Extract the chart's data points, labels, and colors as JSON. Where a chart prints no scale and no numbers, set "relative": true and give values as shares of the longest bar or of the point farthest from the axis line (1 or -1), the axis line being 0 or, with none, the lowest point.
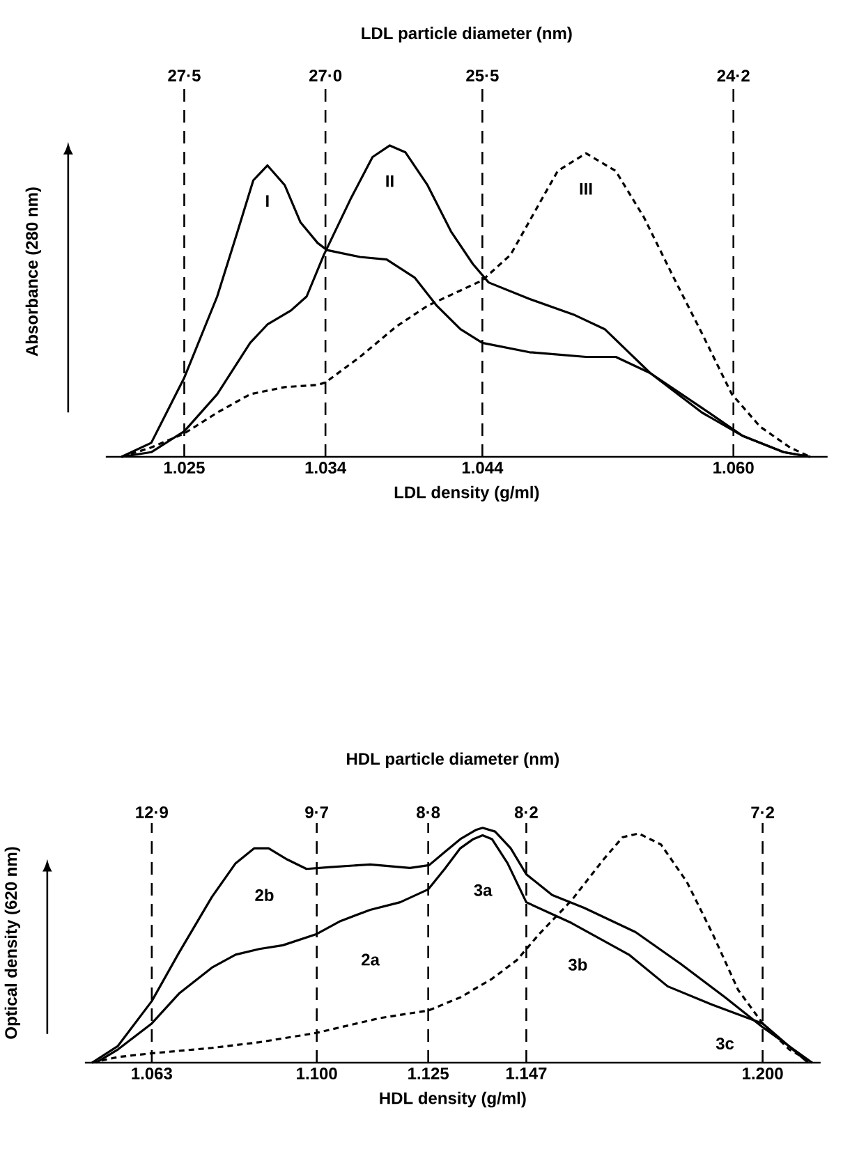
{
  "chart_data": [
    {
      "type": "line",
      "relative": true,
      "title": "LDL particle diameter (nm)",
      "xlabel": "LDL density (g/ml)",
      "ylabel": "Absorbance (280 nm)",
      "xlim": [
        1.02,
        1.066
      ],
      "xticks": [
        1.025,
        1.034,
        1.044,
        {
          "value": 1.06,
          "label": "1.060"
        }
      ],
      "ref_lines": [
        {
          "axis": "x",
          "value": 1.025,
          "line_style": "dashed"
        },
        {
          "axis": "x",
          "value": 1.034,
          "line_style": "dashed"
        },
        {
          "axis": "x",
          "value": 1.044,
          "line_style": "dashed"
        },
        {
          "axis": "x",
          "value": 1.06,
          "line_style": "dashed"
        }
      ],
      "annotations": [
        "27·5",
        "27·0",
        "25·5",
        "24·2"
      ],
      "series": [
        {
          "name": "I",
          "color": "#000000",
          "line_style": "solid",
          "x": [
            1.021,
            1.0229,
            1.025,
            1.0271,
            1.0284,
            1.0294,
            1.0303,
            1.0314,
            1.0324,
            1.0335,
            1.0341,
            1.0362,
            1.0379,
            1.0397,
            1.0411,
            1.0426,
            1.044,
            1.047,
            1.0506,
            1.0525,
            1.0547,
            1.058,
            1.0606,
            1.0632,
            1.0649
          ],
          "values": [
            0,
            0.045,
            0.254,
            0.515,
            0.724,
            0.888,
            0.936,
            0.873,
            0.754,
            0.687,
            0.664,
            0.642,
            0.634,
            0.575,
            0.485,
            0.41,
            0.366,
            0.336,
            0.321,
            0.321,
            0.269,
            0.157,
            0.067,
            0.015,
            0
          ]
        },
        {
          "name": "II",
          "color": "#000000",
          "line_style": "solid",
          "x": [
            1.021,
            1.0229,
            1.025,
            1.0271,
            1.0292,
            1.0303,
            1.0318,
            1.0328,
            1.0339,
            1.0356,
            1.037,
            1.0381,
            1.0391,
            1.0405,
            1.042,
            1.0434,
            1.0444,
            1.047,
            1.0499,
            1.0518,
            1.0547,
            1.058,
            1.0606,
            1.0632,
            1.0649
          ],
          "values": [
            0,
            0.015,
            0.082,
            0.201,
            0.366,
            0.425,
            0.47,
            0.515,
            0.649,
            0.828,
            0.963,
            1,
            0.978,
            0.873,
            0.724,
            0.619,
            0.56,
            0.507,
            0.455,
            0.41,
            0.269,
            0.142,
            0.067,
            0.015,
            0
          ]
        },
        {
          "name": "III",
          "color": "#000000",
          "line_style": "dashed",
          "x": [
            1.021,
            1.0229,
            1.025,
            1.0271,
            1.0292,
            1.0314,
            1.0335,
            1.034,
            1.0362,
            1.0385,
            1.0405,
            1.044,
            1.0458,
            1.0473,
            1.0488,
            1.0506,
            1.0525,
            1.0543,
            1.0562,
            1.058,
            1.0599,
            1.0617,
            1.0636,
            1.0649
          ],
          "values": [
            0,
            0.03,
            0.075,
            0.142,
            0.201,
            0.224,
            0.231,
            0.239,
            0.321,
            0.418,
            0.485,
            0.567,
            0.649,
            0.784,
            0.918,
            0.975,
            0.918,
            0.769,
            0.575,
            0.396,
            0.201,
            0.097,
            0.03,
            0
          ]
        }
      ]
    },
    {
      "type": "line",
      "relative": true,
      "title": "HDL particle diameter (nm)",
      "xlabel": "HDL density (g/ml)",
      "ylabel": "Optical density (620 nm)",
      "xlim": [
        1.048,
        1.213
      ],
      "xticks": [
        1.063,
        {
          "value": 1.1,
          "label": "1.100"
        },
        1.125,
        1.147,
        {
          "value": 1.2,
          "label": "1.200"
        }
      ],
      "ref_lines": [
        {
          "axis": "x",
          "value": 1.063,
          "line_style": "dashed"
        },
        {
          "axis": "x",
          "value": 1.1,
          "line_style": "dashed"
        },
        {
          "axis": "x",
          "value": 1.125,
          "line_style": "dashed"
        },
        {
          "axis": "x",
          "value": 1.147,
          "line_style": "dashed"
        },
        {
          "axis": "x",
          "value": 1.2,
          "line_style": "dashed"
        }
      ],
      "annotations": [
        "12·9",
        "9·7",
        "8·8",
        "8·2",
        "7·2",
        "2b",
        "2a",
        "3a",
        "3b",
        "3c"
      ],
      "series": [
        {
          "color": "#000000",
          "line_style": "solid",
          "x": [
            1.0496,
            1.0554,
            1.063,
            1.0691,
            1.0765,
            1.0818,
            1.086,
            1.0892,
            1.0934,
            1.0977,
            1.1031,
            1.112,
            1.1209,
            1.1252,
            1.1287,
            1.1322,
            1.1358,
            1.1372,
            1.14,
            1.1435,
            1.147,
            1.1528,
            1.16,
            1.1715,
            1.1816,
            1.1916,
            1.2,
            1.2111
          ],
          "values": [
            0,
            0.071,
            0.262,
            0.468,
            0.706,
            0.849,
            0.913,
            0.913,
            0.865,
            0.825,
            0.833,
            0.844,
            0.829,
            0.841,
            0.897,
            0.952,
            0.992,
            1,
            0.984,
            0.913,
            0.802,
            0.714,
            0.659,
            0.556,
            0.421,
            0.278,
            0.151,
            0
          ]
        },
        {
          "color": "#000000",
          "line_style": "solid",
          "x": [
            1.0505,
            1.0554,
            1.063,
            1.0691,
            1.0765,
            1.0818,
            1.0871,
            1.0924,
            1.1,
            1.1053,
            1.112,
            1.1187,
            1.125,
            1.1287,
            1.1322,
            1.1351,
            1.1372,
            1.1393,
            1.1428,
            1.147,
            1.1571,
            1.17,
            1.1787,
            1.1888,
            1.2,
            1.2102
          ],
          "values": [
            0,
            0.056,
            0.167,
            0.294,
            0.405,
            0.46,
            0.484,
            0.5,
            0.548,
            0.603,
            0.651,
            0.683,
            0.738,
            0.825,
            0.913,
            0.952,
            0.968,
            0.952,
            0.849,
            0.683,
            0.595,
            0.46,
            0.325,
            0.246,
            0.167,
            0
          ]
        },
        {
          "color": "#000000",
          "line_style": "dashed",
          "x": [
            1.0496,
            1.0554,
            1.063,
            1.0765,
            1.0871,
            1.1,
            1.1142,
            1.125,
            1.1322,
            1.1393,
            1.1449,
            1.1499,
            1.1571,
            1.1643,
            1.1686,
            1.1722,
            1.1772,
            1.183,
            1.1888,
            1.1945,
            1.2,
            1.206,
            1.2111
          ],
          "values": [
            0,
            0.024,
            0.04,
            0.063,
            0.087,
            0.127,
            0.19,
            0.222,
            0.278,
            0.357,
            0.437,
            0.548,
            0.69,
            0.865,
            0.96,
            0.976,
            0.929,
            0.77,
            0.548,
            0.31,
            0.167,
            0.056,
            0
          ]
        }
      ]
    }
  ]
}
